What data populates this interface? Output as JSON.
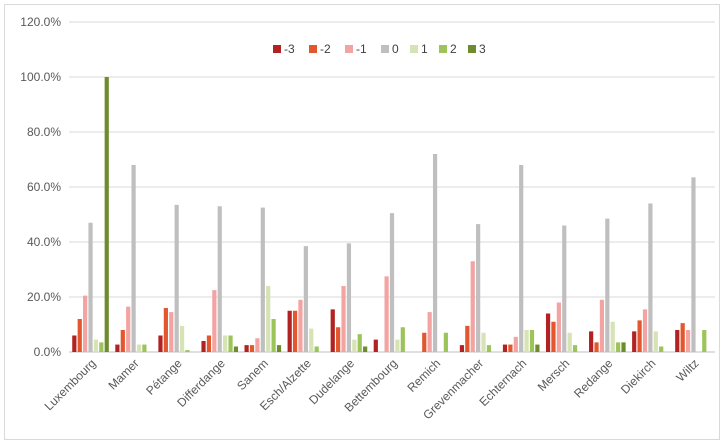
{
  "chart_data": {
    "type": "bar",
    "title": "",
    "xlabel": "",
    "ylabel": "",
    "ylim": [
      0,
      120
    ],
    "y_tick_format": "percent_1dp",
    "y_ticks": [
      0,
      20,
      40,
      60,
      80,
      100,
      120
    ],
    "y_tick_labels": [
      "0.0%",
      "20.0%",
      "40.0%",
      "60.0%",
      "80.0%",
      "100.0%",
      "120.0%"
    ],
    "grid": true,
    "legend_position": "top-center",
    "categories": [
      "Luxembourg",
      "Mamer",
      "Pétange",
      "Differdange",
      "Sanem",
      "Esch/Alzette",
      "Dudelange",
      "Bettembourg",
      "Remich",
      "Grevenmacher",
      "Echternach",
      "Mersch",
      "Redange",
      "Diekirch",
      "Wiltz"
    ],
    "series": [
      {
        "name": "-3",
        "color": "#b22222",
        "values": [
          6,
          2.7,
          6,
          4,
          2.5,
          15,
          15.5,
          4.5,
          0,
          2.5,
          2.7,
          14,
          7.5,
          7.5,
          8
        ]
      },
      {
        "name": "-2",
        "color": "#e2572e",
        "values": [
          12,
          8,
          16,
          6,
          2.5,
          15,
          9,
          0,
          7,
          9.5,
          2.7,
          11,
          3.5,
          11.5,
          10.5
        ]
      },
      {
        "name": "-1",
        "color": "#f4a3a3",
        "values": [
          20.5,
          16.5,
          14.5,
          22.5,
          5,
          19,
          24,
          27.5,
          14.5,
          33,
          5.5,
          18,
          19,
          15.5,
          8
        ]
      },
      {
        "name": "0",
        "color": "#bfbfbf",
        "values": [
          47,
          68,
          53.5,
          53,
          52.5,
          38.5,
          39.5,
          50.5,
          72,
          46.5,
          68,
          46,
          48.5,
          54,
          63.5
        ]
      },
      {
        "name": "1",
        "color": "#d5e3b5",
        "values": [
          4.5,
          2.7,
          9.5,
          6,
          24,
          8.5,
          4.5,
          4.5,
          0,
          7,
          8,
          7,
          11,
          7.5,
          0
        ]
      },
      {
        "name": "2",
        "color": "#9cc45a",
        "values": [
          3.5,
          2.7,
          0.7,
          6,
          12,
          2,
          6.5,
          9,
          7,
          2.5,
          8,
          2.5,
          3.5,
          2,
          8
        ]
      },
      {
        "name": "3",
        "color": "#6e8c2e",
        "values": [
          100,
          0,
          0,
          2,
          2.5,
          0,
          2,
          0,
          0,
          0,
          2.7,
          0,
          3.5,
          0,
          0
        ]
      }
    ]
  }
}
